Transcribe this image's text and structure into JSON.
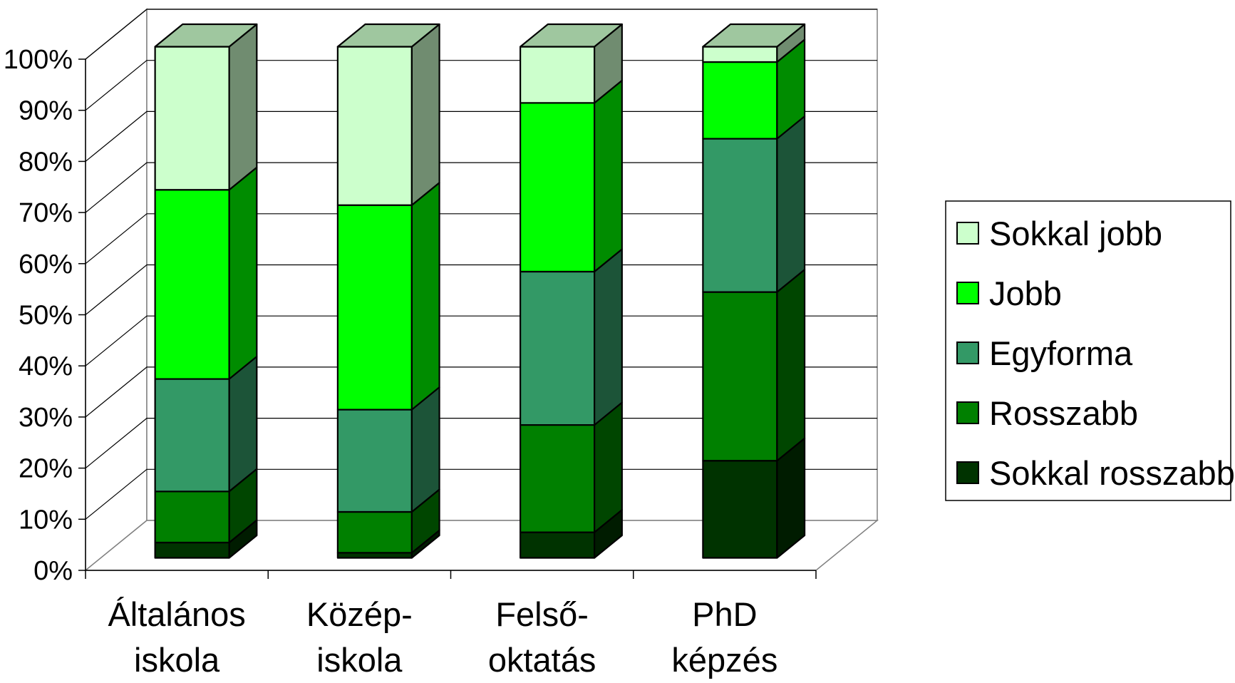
{
  "chart_data": {
    "type": "bar",
    "stacked": true,
    "percent_stacked": true,
    "three_d": true,
    "title": "",
    "xlabel": "",
    "ylabel": "",
    "ylim": [
      0,
      100
    ],
    "yticks": [
      "0%",
      "10%",
      "20%",
      "30%",
      "40%",
      "50%",
      "60%",
      "70%",
      "80%",
      "90%",
      "100%"
    ],
    "grid": true,
    "legend_position": "right",
    "categories": [
      [
        "Általános",
        "iskola"
      ],
      [
        "Közép-",
        "iskola"
      ],
      [
        "Felső-",
        "oktatás"
      ],
      [
        "PhD",
        "képzés"
      ]
    ],
    "series": [
      {
        "name": "Sokkal rosszabb",
        "color": "#003300",
        "values": [
          3,
          1,
          5,
          19
        ]
      },
      {
        "name": "Rosszabb",
        "color": "#008000",
        "values": [
          10,
          8,
          21,
          33
        ]
      },
      {
        "name": "Egyforma",
        "color": "#339966",
        "values": [
          22,
          20,
          30,
          30
        ]
      },
      {
        "name": "Jobb",
        "color": "#00ff00",
        "values": [
          37,
          40,
          33,
          15
        ]
      },
      {
        "name": "Sokkal jobb",
        "color": "#ccffcc",
        "values": [
          28,
          31,
          11,
          3
        ]
      }
    ]
  }
}
